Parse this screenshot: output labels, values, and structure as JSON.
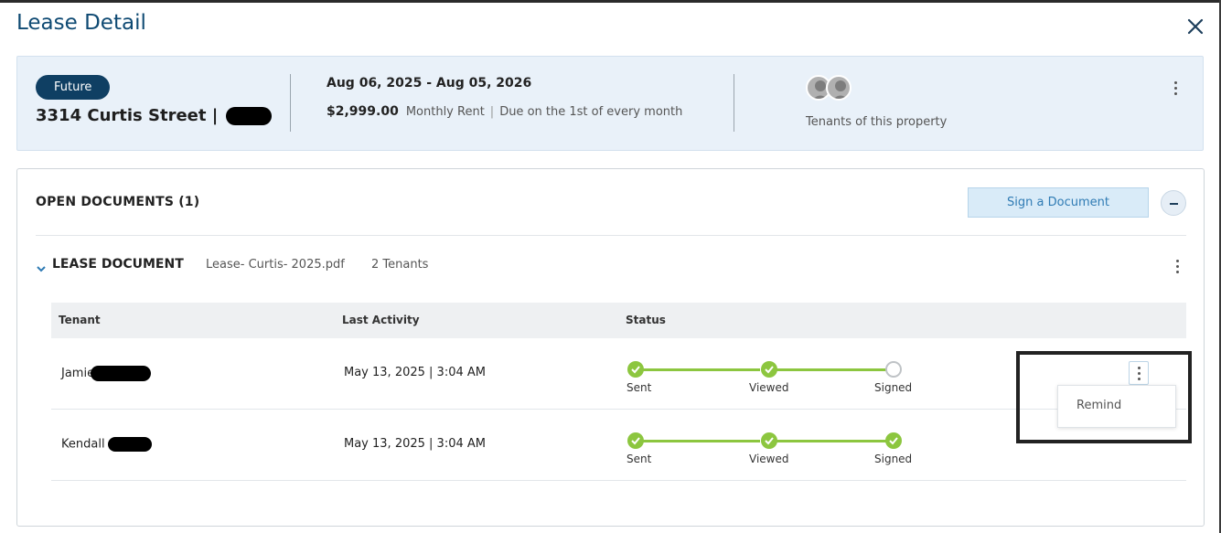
{
  "header": {
    "title": "Lease Detail",
    "close_icon": "close-icon"
  },
  "summary": {
    "status_badge": "Future",
    "address": "3314 Curtis Street |",
    "date_range": "Aug 06, 2025 - Aug 05, 2026",
    "rent_amount": "$2,999.00",
    "rent_label": "Monthly Rent",
    "rent_separator": "|",
    "due_text": "Due on the 1st of every month",
    "tenants_label": "Tenants of this property"
  },
  "documents": {
    "section_title": "OPEN DOCUMENTS (1)",
    "sign_button": "Sign a Document",
    "doc_type": "LEASE DOCUMENT",
    "file_name": "Lease- Curtis- 2025.pdf",
    "tenant_count": "2 Tenants",
    "columns": [
      "Tenant",
      "Last Activity",
      "Status"
    ],
    "rows": [
      {
        "tenant": "Jamie",
        "last_activity": "May 13, 2025 | 3:04 AM",
        "steps": [
          {
            "label": "Sent",
            "done": true
          },
          {
            "label": "Viewed",
            "done": true
          },
          {
            "label": "Signed",
            "done": false
          }
        ]
      },
      {
        "tenant": "Kendall",
        "last_activity": "May 13, 2025 | 3:04 AM",
        "steps": [
          {
            "label": "Sent",
            "done": true
          },
          {
            "label": "Viewed",
            "done": true
          },
          {
            "label": "Signed",
            "done": true
          }
        ]
      }
    ],
    "row_menu": {
      "items": [
        "Remind"
      ]
    }
  },
  "colors": {
    "accent": "#0f4a73",
    "badge": "#0f3f63",
    "progress": "#8cc63f",
    "sign_button_bg": "#d9ebf8"
  }
}
